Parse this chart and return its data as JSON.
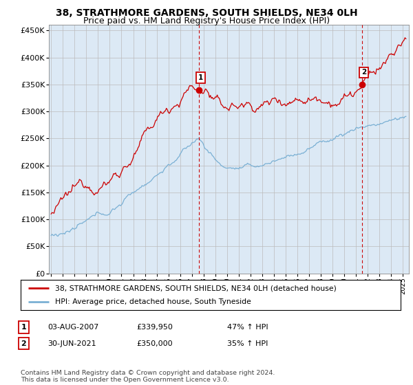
{
  "title": "38, STRATHMORE GARDENS, SOUTH SHIELDS, NE34 0LH",
  "subtitle": "Price paid vs. HM Land Registry's House Price Index (HPI)",
  "ylabel_ticks": [
    "£0",
    "£50K",
    "£100K",
    "£150K",
    "£200K",
    "£250K",
    "£300K",
    "£350K",
    "£400K",
    "£450K"
  ],
  "ytick_values": [
    0,
    50000,
    100000,
    150000,
    200000,
    250000,
    300000,
    350000,
    400000,
    450000
  ],
  "ylim": [
    0,
    460000
  ],
  "xlim_start": 1994.8,
  "xlim_end": 2025.5,
  "grid_color": "#bbbbbb",
  "background_color": "#ffffff",
  "plot_bg_color": "#dce9f5",
  "red_line_color": "#cc0000",
  "blue_line_color": "#7ab0d4",
  "marker1_x": 2007.58,
  "marker1_y": 339950,
  "marker2_x": 2021.5,
  "marker2_y": 350000,
  "marker1_label": "1",
  "marker2_label": "2",
  "legend_line1": "38, STRATHMORE GARDENS, SOUTH SHIELDS, NE34 0LH (detached house)",
  "legend_line2": "HPI: Average price, detached house, South Tyneside",
  "table_row1_num": "1",
  "table_row1_date": "03-AUG-2007",
  "table_row1_price": "£339,950",
  "table_row1_hpi": "47% ↑ HPI",
  "table_row2_num": "2",
  "table_row2_date": "30-JUN-2021",
  "table_row2_price": "£350,000",
  "table_row2_hpi": "35% ↑ HPI",
  "footer": "Contains HM Land Registry data © Crown copyright and database right 2024.\nThis data is licensed under the Open Government Licence v3.0.",
  "title_fontsize": 10,
  "subtitle_fontsize": 9
}
